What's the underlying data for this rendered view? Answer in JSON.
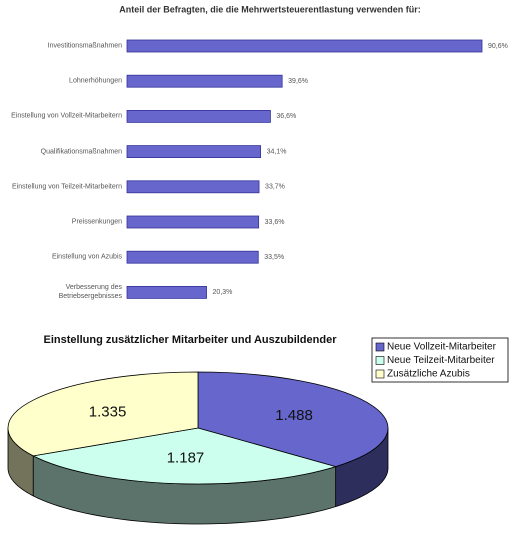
{
  "chart_data": [
    {
      "type": "bar",
      "orientation": "horizontal",
      "title": "Anteil der Befragten, die die Mehrwertsteuerentlastung verwenden für:",
      "categories": [
        "Investitionsmaßnahmen",
        "Lohnerhöhungen",
        "Einstellung von Vollzeit-Mitarbeitern",
        "Qualifikationsmaßnahmen",
        "Einstellung von Teilzeit-Mitarbeitern",
        "Preissenkungen",
        "Einstellung von Azubis",
        "Verbesserung des Betriebsergebnisses"
      ],
      "values": [
        90.6,
        39.6,
        36.6,
        34.1,
        33.7,
        33.6,
        33.5,
        20.3
      ],
      "value_labels": [
        "90,6%",
        "39,6%",
        "36,6%",
        "34,1%",
        "33,7%",
        "33,6%",
        "33,5%",
        "20,3%"
      ],
      "color": "#6666cc"
    },
    {
      "type": "pie",
      "three_d": true,
      "title": "Einstellung zusätzlicher Mitarbeiter und Auszubildender",
      "categories": [
        "Neue Vollzeit-Mitarbeiter",
        "Neue Teilzeit-Mitarbeiter",
        "Zusätzliche Azubis"
      ],
      "values": [
        1488,
        1187,
        1335
      ],
      "value_labels": [
        "1.488",
        "1.187",
        "1.335"
      ],
      "colors": [
        "#6666cc",
        "#ccffee",
        "#ffffcc"
      ],
      "legend": "top-right"
    }
  ]
}
